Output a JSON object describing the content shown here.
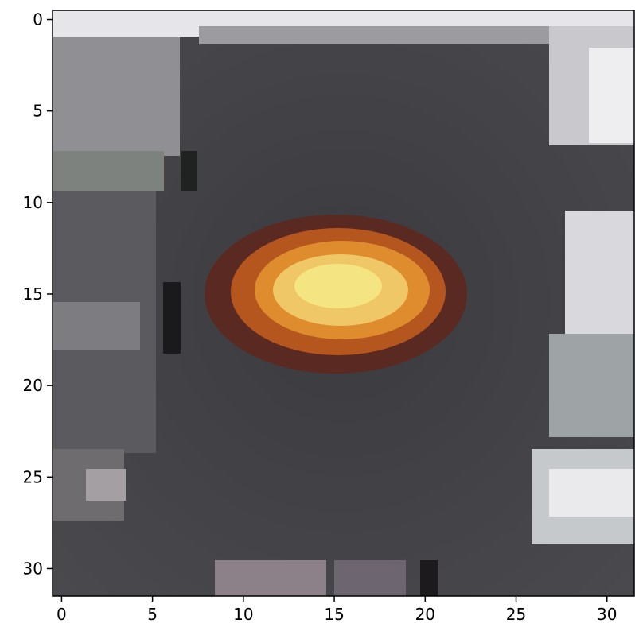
{
  "image": {
    "subject": "pixelated-orange-light",
    "grid_size": [
      32,
      32
    ],
    "x_ticks": [
      "0",
      "5",
      "10",
      "15",
      "20",
      "25",
      "30"
    ],
    "y_ticks": [
      "0",
      "5",
      "10",
      "15",
      "20",
      "25",
      "30"
    ],
    "palette": {
      "dark_gray": "#3a3a3e",
      "mid_gray": "#4a4a4e",
      "light_gray": "#b9b9be",
      "white": "#eeeeee",
      "orange": "#e08a2a",
      "yellow": "#f4e07a",
      "dark_red": "#4a1616"
    }
  }
}
